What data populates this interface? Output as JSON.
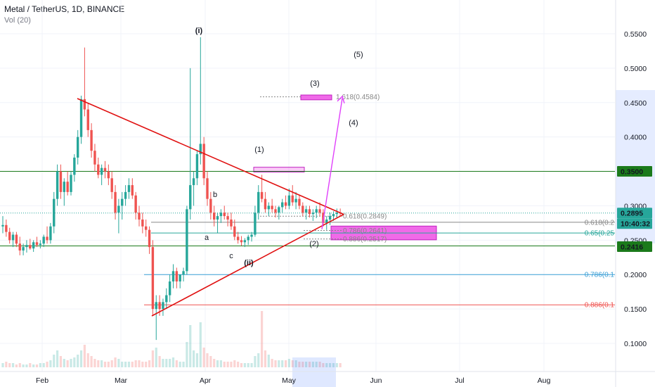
{
  "header": {
    "symbol": "Metal / TetherUS, 1D, BINANCE",
    "indicator": "Vol (20)"
  },
  "colors": {
    "up": "#26a69a",
    "down": "#ef5350",
    "triangle": "#e01010",
    "magenta": "#e040fb",
    "level_green": "#1b7a1b",
    "fib_blue": "#3a9fd6"
  },
  "chart_data": {
    "type": "candlestick",
    "exchange": "BINANCE",
    "pair": "Metal / TetherUS",
    "timeframe": "1D",
    "ylim": [
      0.06,
      0.58
    ],
    "yticks": [
      0.1,
      0.15,
      0.2,
      0.25,
      0.3,
      0.35,
      0.4,
      0.45,
      0.5,
      0.55
    ],
    "ytick_labels": [
      "0.1000",
      "0.1500",
      "0.2000",
      "0.2500",
      "0.3000",
      "0.3500",
      "0.4000",
      "0.4500",
      "0.5000",
      "0.5500"
    ],
    "xticks": [
      "Feb",
      "Mar",
      "Apr",
      "May",
      "Jun",
      "Jul",
      "Aug"
    ],
    "price_labels": [
      {
        "value": 0.35,
        "text": "0.3500",
        "color": "#1b7a1b"
      },
      {
        "value": 0.2895,
        "text": "0.2895",
        "color": "#26a69a"
      },
      {
        "value": 0.2895,
        "text": "10:40:32",
        "color": "#26a69a",
        "sub": true
      },
      {
        "value": 0.2416,
        "text": "0.2416",
        "color": "#1b7a1b"
      }
    ],
    "horizontal_levels": [
      {
        "value": 0.35,
        "color": "#1b7a1b"
      },
      {
        "value": 0.2416,
        "color": "#1b7a1b"
      }
    ],
    "fib_levels": [
      {
        "value": 0.2849,
        "label": "0.618(0.2849)",
        "color": "#888888"
      },
      {
        "value": 0.2641,
        "label": "0.786(0.2641)",
        "color": "#888888"
      },
      {
        "value": 0.2517,
        "label": "0.886(0.2517)",
        "color": "#888888"
      },
      {
        "value": 0.276,
        "label": "0.618(0.2",
        "color": "#888888"
      },
      {
        "value": 0.2605,
        "label": "0.65(0.25",
        "color": "#26a69a"
      },
      {
        "value": 0.2,
        "label": "0.786(0.1",
        "color": "#3a9fd6"
      },
      {
        "value": 0.156,
        "label": "0.886(0.1",
        "color": "#ef5350"
      },
      {
        "value": 0.4584,
        "label": "1.618(0.4584)",
        "color": "#888888"
      }
    ],
    "wave_labels": [
      {
        "text": "(i)",
        "bold": true
      },
      {
        "text": "(ii)",
        "bold": true
      },
      {
        "text": "(1)"
      },
      {
        "text": "(2)"
      },
      {
        "text": "(3)"
      },
      {
        "text": "(4)"
      },
      {
        "text": "(5)"
      },
      {
        "text": "a",
        "color": "#c2188f"
      },
      {
        "text": "b",
        "color": "#c2188f"
      },
      {
        "text": "c",
        "color": "#c2188f"
      }
    ],
    "candles": [
      [
        0.27,
        0.285,
        0.26,
        0.272
      ],
      [
        0.272,
        0.28,
        0.255,
        0.262
      ],
      [
        0.262,
        0.268,
        0.245,
        0.25
      ],
      [
        0.25,
        0.262,
        0.24,
        0.258
      ],
      [
        0.258,
        0.262,
        0.24,
        0.245
      ],
      [
        0.245,
        0.255,
        0.228,
        0.235
      ],
      [
        0.235,
        0.245,
        0.228,
        0.24
      ],
      [
        0.24,
        0.25,
        0.232,
        0.243
      ],
      [
        0.243,
        0.252,
        0.236,
        0.238
      ],
      [
        0.238,
        0.25,
        0.233,
        0.247
      ],
      [
        0.247,
        0.255,
        0.24,
        0.243
      ],
      [
        0.243,
        0.25,
        0.238,
        0.245
      ],
      [
        0.245,
        0.258,
        0.24,
        0.255
      ],
      [
        0.255,
        0.27,
        0.245,
        0.25
      ],
      [
        0.25,
        0.275,
        0.245,
        0.27
      ],
      [
        0.27,
        0.32,
        0.26,
        0.31
      ],
      [
        0.31,
        0.36,
        0.3,
        0.35
      ],
      [
        0.35,
        0.36,
        0.31,
        0.32
      ],
      [
        0.32,
        0.34,
        0.3,
        0.335
      ],
      [
        0.335,
        0.35,
        0.315,
        0.32
      ],
      [
        0.32,
        0.35,
        0.315,
        0.345
      ],
      [
        0.345,
        0.375,
        0.335,
        0.37
      ],
      [
        0.37,
        0.41,
        0.36,
        0.4
      ],
      [
        0.4,
        0.46,
        0.39,
        0.455
      ],
      [
        0.455,
        0.53,
        0.43,
        0.44
      ],
      [
        0.44,
        0.45,
        0.4,
        0.41
      ],
      [
        0.41,
        0.42,
        0.37,
        0.38
      ],
      [
        0.38,
        0.39,
        0.35,
        0.36
      ],
      [
        0.36,
        0.37,
        0.34,
        0.345
      ],
      [
        0.345,
        0.36,
        0.33,
        0.355
      ],
      [
        0.355,
        0.365,
        0.34,
        0.35
      ],
      [
        0.35,
        0.36,
        0.33,
        0.34
      ],
      [
        0.34,
        0.35,
        0.31,
        0.32
      ],
      [
        0.32,
        0.33,
        0.28,
        0.29
      ],
      [
        0.29,
        0.31,
        0.26,
        0.3
      ],
      [
        0.3,
        0.32,
        0.28,
        0.31
      ],
      [
        0.31,
        0.33,
        0.3,
        0.32
      ],
      [
        0.32,
        0.34,
        0.31,
        0.33
      ],
      [
        0.33,
        0.34,
        0.31,
        0.315
      ],
      [
        0.315,
        0.32,
        0.28,
        0.29
      ],
      [
        0.29,
        0.3,
        0.27,
        0.28
      ],
      [
        0.28,
        0.29,
        0.26,
        0.27
      ],
      [
        0.27,
        0.28,
        0.255,
        0.265
      ],
      [
        0.265,
        0.27,
        0.23,
        0.24
      ],
      [
        0.24,
        0.25,
        0.14,
        0.15
      ],
      [
        0.15,
        0.17,
        0.105,
        0.16
      ],
      [
        0.16,
        0.17,
        0.14,
        0.15
      ],
      [
        0.15,
        0.165,
        0.14,
        0.16
      ],
      [
        0.16,
        0.18,
        0.15,
        0.17
      ],
      [
        0.17,
        0.2,
        0.16,
        0.19
      ],
      [
        0.19,
        0.215,
        0.18,
        0.205
      ],
      [
        0.205,
        0.21,
        0.18,
        0.19
      ],
      [
        0.19,
        0.2,
        0.18,
        0.2
      ],
      [
        0.2,
        0.21,
        0.19,
        0.205
      ],
      [
        0.205,
        0.3,
        0.2,
        0.295
      ],
      [
        0.295,
        0.5,
        0.28,
        0.33
      ],
      [
        0.33,
        0.35,
        0.3,
        0.34
      ],
      [
        0.34,
        0.38,
        0.33,
        0.375
      ],
      [
        0.375,
        0.545,
        0.36,
        0.39
      ],
      [
        0.39,
        0.4,
        0.33,
        0.34
      ],
      [
        0.34,
        0.35,
        0.3,
        0.31
      ],
      [
        0.31,
        0.32,
        0.28,
        0.29
      ],
      [
        0.29,
        0.3,
        0.27,
        0.28
      ],
      [
        0.28,
        0.29,
        0.26,
        0.285
      ],
      [
        0.285,
        0.295,
        0.275,
        0.29
      ],
      [
        0.29,
        0.3,
        0.28,
        0.285
      ],
      [
        0.285,
        0.29,
        0.27,
        0.28
      ],
      [
        0.28,
        0.29,
        0.265,
        0.27
      ],
      [
        0.27,
        0.28,
        0.25,
        0.255
      ],
      [
        0.255,
        0.262,
        0.245,
        0.25
      ],
      [
        0.25,
        0.256,
        0.242,
        0.247
      ],
      [
        0.247,
        0.253,
        0.24,
        0.25
      ],
      [
        0.25,
        0.258,
        0.243,
        0.255
      ],
      [
        0.255,
        0.262,
        0.248,
        0.258
      ],
      [
        0.258,
        0.3,
        0.255,
        0.29
      ],
      [
        0.29,
        0.33,
        0.28,
        0.32
      ],
      [
        0.32,
        0.345,
        0.305,
        0.31
      ],
      [
        0.31,
        0.32,
        0.29,
        0.295
      ],
      [
        0.295,
        0.305,
        0.285,
        0.3
      ],
      [
        0.3,
        0.31,
        0.29,
        0.295
      ],
      [
        0.295,
        0.3,
        0.283,
        0.29
      ],
      [
        0.29,
        0.3,
        0.28,
        0.298
      ],
      [
        0.298,
        0.31,
        0.29,
        0.305
      ],
      [
        0.305,
        0.315,
        0.295,
        0.3
      ],
      [
        0.3,
        0.325,
        0.295,
        0.315
      ],
      [
        0.315,
        0.33,
        0.3,
        0.305
      ],
      [
        0.305,
        0.32,
        0.295,
        0.31
      ],
      [
        0.31,
        0.315,
        0.295,
        0.3
      ],
      [
        0.3,
        0.305,
        0.285,
        0.29
      ],
      [
        0.29,
        0.3,
        0.28,
        0.295
      ],
      [
        0.295,
        0.3,
        0.283,
        0.288
      ],
      [
        0.288,
        0.295,
        0.278,
        0.29
      ],
      [
        0.29,
        0.3,
        0.282,
        0.295
      ],
      [
        0.295,
        0.305,
        0.285,
        0.29
      ],
      [
        0.29,
        0.295,
        0.27,
        0.275
      ],
      [
        0.275,
        0.285,
        0.265,
        0.28
      ],
      [
        0.28,
        0.29,
        0.272,
        0.285
      ],
      [
        0.285,
        0.292,
        0.278,
        0.288
      ],
      [
        0.288,
        0.296,
        0.282,
        0.29
      ],
      [
        0.29,
        0.296,
        0.284,
        0.2895
      ]
    ],
    "volumes": [
      3,
      4,
      3,
      3,
      2,
      3,
      2,
      2,
      3,
      2,
      2,
      3,
      3,
      4,
      5,
      9,
      12,
      8,
      6,
      5,
      6,
      7,
      9,
      12,
      16,
      10,
      8,
      6,
      5,
      5,
      4,
      4,
      5,
      7,
      6,
      4,
      4,
      4,
      4,
      5,
      5,
      4,
      4,
      5,
      12,
      14,
      8,
      6,
      6,
      6,
      7,
      5,
      4,
      4,
      18,
      30,
      12,
      10,
      32,
      14,
      10,
      8,
      6,
      5,
      5,
      4,
      4,
      4,
      5,
      4,
      3,
      3,
      3,
      3,
      8,
      10,
      40,
      12,
      9,
      6,
      5,
      5,
      5,
      5,
      6,
      5,
      5,
      4,
      4,
      4,
      4,
      4,
      4,
      4,
      3,
      3,
      3,
      3,
      3,
      3
    ]
  }
}
